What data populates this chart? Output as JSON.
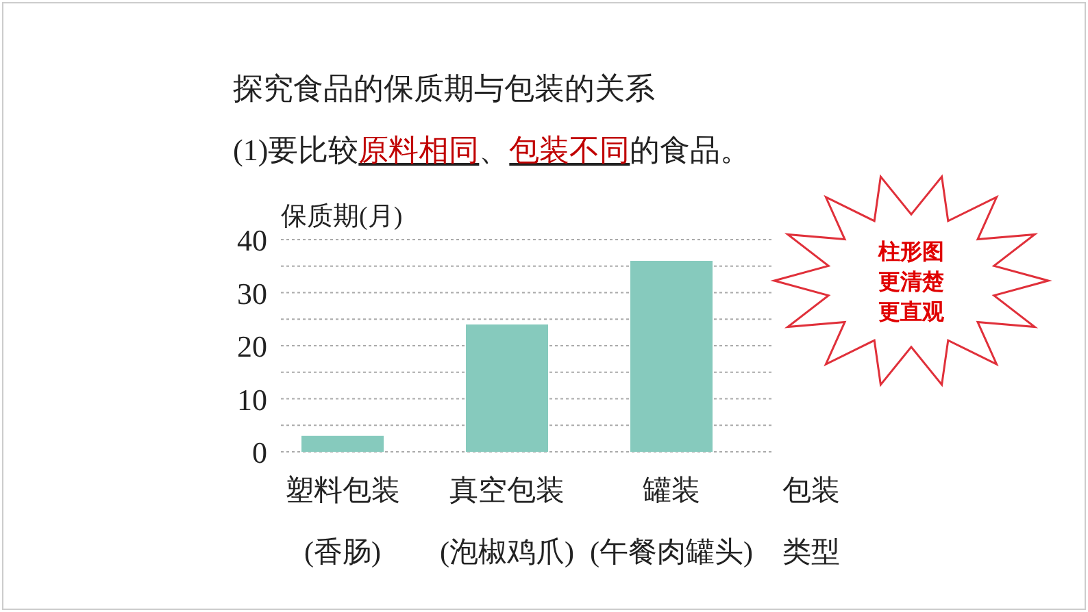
{
  "chart_data": {
    "type": "bar",
    "title": "探究食品的保质期与包装的关系",
    "subtitle": "(1)要比较**原料相同**、**包装不同**的食品。",
    "ylabel": "保质期(月)",
    "xlabel": "包装类型",
    "categories": [
      "塑料包装(香肠)",
      "真空包装(泡椒鸡爪)",
      "罐装(午餐肉罐头)"
    ],
    "values": [
      3,
      24,
      36
    ],
    "color": "#86cabd",
    "ylim": [
      0,
      40
    ],
    "yticks": [
      0,
      {
        "value": 5,
        "label": null
      },
      10,
      {
        "value": 15,
        "label": null
      },
      20,
      {
        "value": 25,
        "label": null
      },
      30,
      {
        "value": 35,
        "label": null
      },
      40
    ],
    "grid": "y",
    "annotations": [
      "柱形图",
      "更清楚",
      "更直观"
    ]
  }
}
